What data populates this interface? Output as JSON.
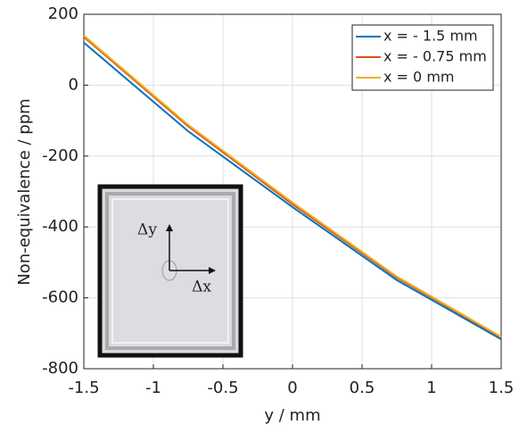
{
  "chart_data": {
    "type": "line",
    "xlabel": "y / mm",
    "ylabel": "Non-equivalence / ppm",
    "x": [
      -1.5,
      -0.75,
      0,
      0.75,
      1.5
    ],
    "series": [
      {
        "name": "x = - 1.5 mm",
        "color": "#0072BD",
        "values": [
          120,
          -130,
          -344,
          -550,
          -717
        ]
      },
      {
        "name": "x = - 0.75 mm",
        "color": "#D95319",
        "values": [
          136,
          -116,
          -336,
          -543,
          -712
        ]
      },
      {
        "name": "x = 0 mm",
        "color": "#EDB120",
        "values": [
          140,
          -112,
          -331,
          -540,
          -710
        ]
      }
    ],
    "xlim": [
      -1.5,
      1.5
    ],
    "xticks": [
      -1.5,
      -1,
      -0.5,
      0,
      0.5,
      1,
      1.5
    ],
    "ylim": [
      -800,
      200
    ],
    "yticks": [
      -800,
      -600,
      -400,
      -200,
      0,
      200
    ],
    "grid": true,
    "legend": "northeast",
    "annotations": [
      "Δy",
      "Δx"
    ]
  }
}
